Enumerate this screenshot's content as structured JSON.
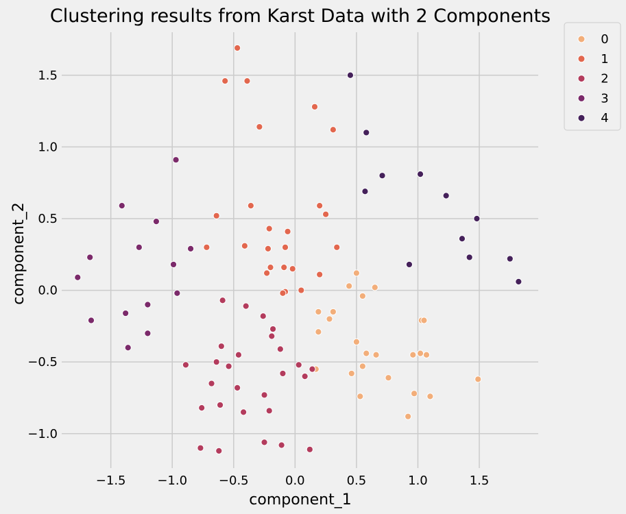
{
  "chart_data": {
    "type": "scatter",
    "title": "Clustering results from Karst Data with 2 Components",
    "xlabel": "component_1",
    "ylabel": "component_2",
    "xlim": [
      -1.9,
      1.98
    ],
    "ylim": [
      -1.24,
      1.8
    ],
    "xticks": [
      -1.5,
      -1.0,
      -0.5,
      0.0,
      0.5,
      1.0,
      1.5
    ],
    "xtick_labels": [
      "−1.5",
      "−1.0",
      "−0.5",
      "0.0",
      "0.5",
      "1.0",
      "1.5"
    ],
    "yticks": [
      -1.0,
      -0.5,
      0.0,
      0.5,
      1.0,
      1.5
    ],
    "ytick_labels": [
      "−1.0",
      "−0.5",
      "0.0",
      "0.5",
      "1.0",
      "1.5"
    ],
    "grid": true,
    "legend_position": "outside-top-right",
    "series": [
      {
        "name": "0",
        "color": "#f2ae7a",
        "points": [
          [
            0.5,
            0.12
          ],
          [
            0.44,
            0.03
          ],
          [
            0.65,
            0.02
          ],
          [
            0.55,
            -0.04
          ],
          [
            0.19,
            -0.15
          ],
          [
            0.31,
            -0.15
          ],
          [
            0.28,
            -0.2
          ],
          [
            1.03,
            -0.21
          ],
          [
            1.05,
            -0.21
          ],
          [
            0.19,
            -0.29
          ],
          [
            0.5,
            -0.36
          ],
          [
            0.58,
            -0.44
          ],
          [
            0.66,
            -0.45
          ],
          [
            0.96,
            -0.45
          ],
          [
            1.02,
            -0.44
          ],
          [
            1.07,
            -0.45
          ],
          [
            0.17,
            -0.55
          ],
          [
            0.46,
            -0.58
          ],
          [
            0.55,
            -0.53
          ],
          [
            0.76,
            -0.61
          ],
          [
            1.49,
            -0.62
          ],
          [
            0.97,
            -0.72
          ],
          [
            1.1,
            -0.74
          ],
          [
            0.53,
            -0.74
          ],
          [
            0.92,
            -0.88
          ]
        ]
      },
      {
        "name": "1",
        "color": "#e2674e",
        "points": [
          [
            -0.47,
            1.69
          ],
          [
            -0.57,
            1.46
          ],
          [
            -0.39,
            1.46
          ],
          [
            0.16,
            1.28
          ],
          [
            -0.29,
            1.14
          ],
          [
            0.31,
            1.12
          ],
          [
            -0.36,
            0.59
          ],
          [
            0.2,
            0.59
          ],
          [
            0.25,
            0.53
          ],
          [
            -0.64,
            0.52
          ],
          [
            -0.21,
            0.43
          ],
          [
            -0.06,
            0.41
          ],
          [
            -0.72,
            0.3
          ],
          [
            -0.41,
            0.31
          ],
          [
            -0.22,
            0.29
          ],
          [
            -0.08,
            0.3
          ],
          [
            0.34,
            0.3
          ],
          [
            -0.2,
            0.16
          ],
          [
            -0.09,
            0.16
          ],
          [
            -0.02,
            0.15
          ],
          [
            -0.23,
            0.12
          ],
          [
            0.2,
            0.11
          ],
          [
            -0.08,
            -0.01
          ],
          [
            -0.1,
            -0.02
          ],
          [
            0.05,
            0.0
          ]
        ]
      },
      {
        "name": "2",
        "color": "#b33c5d",
        "points": [
          [
            -0.59,
            -0.07
          ],
          [
            -0.4,
            -0.11
          ],
          [
            -0.26,
            -0.18
          ],
          [
            -0.18,
            -0.27
          ],
          [
            -0.19,
            -0.32
          ],
          [
            -0.6,
            -0.39
          ],
          [
            -0.46,
            -0.45
          ],
          [
            -0.12,
            -0.41
          ],
          [
            -0.89,
            -0.52
          ],
          [
            -0.64,
            -0.5
          ],
          [
            -0.54,
            -0.53
          ],
          [
            0.03,
            -0.52
          ],
          [
            0.14,
            -0.55
          ],
          [
            -0.1,
            -0.58
          ],
          [
            0.08,
            -0.6
          ],
          [
            -0.68,
            -0.65
          ],
          [
            -0.47,
            -0.68
          ],
          [
            -0.25,
            -0.73
          ],
          [
            -0.76,
            -0.82
          ],
          [
            -0.61,
            -0.8
          ],
          [
            -0.42,
            -0.85
          ],
          [
            -0.21,
            -0.84
          ],
          [
            -0.25,
            -1.06
          ],
          [
            -0.11,
            -1.08
          ],
          [
            -0.77,
            -1.1
          ],
          [
            -0.62,
            -1.12
          ],
          [
            0.12,
            -1.11
          ]
        ]
      },
      {
        "name": "3",
        "color": "#7b2a6a",
        "points": [
          [
            -0.97,
            0.91
          ],
          [
            -1.41,
            0.59
          ],
          [
            -1.13,
            0.48
          ],
          [
            -1.27,
            0.3
          ],
          [
            -0.85,
            0.29
          ],
          [
            -1.67,
            0.23
          ],
          [
            -0.99,
            0.18
          ],
          [
            -1.77,
            0.09
          ],
          [
            -0.96,
            -0.02
          ],
          [
            -1.2,
            -0.1
          ],
          [
            -1.38,
            -0.16
          ],
          [
            -1.66,
            -0.21
          ],
          [
            -1.2,
            -0.3
          ],
          [
            -1.36,
            -0.4
          ]
        ]
      },
      {
        "name": "4",
        "color": "#45215a",
        "points": [
          [
            0.45,
            1.5
          ],
          [
            0.58,
            1.1
          ],
          [
            0.71,
            0.8
          ],
          [
            1.02,
            0.81
          ],
          [
            0.57,
            0.69
          ],
          [
            1.23,
            0.66
          ],
          [
            1.48,
            0.5
          ],
          [
            1.36,
            0.36
          ],
          [
            1.42,
            0.23
          ],
          [
            0.93,
            0.18
          ],
          [
            1.75,
            0.22
          ],
          [
            1.82,
            0.06
          ]
        ]
      }
    ]
  }
}
